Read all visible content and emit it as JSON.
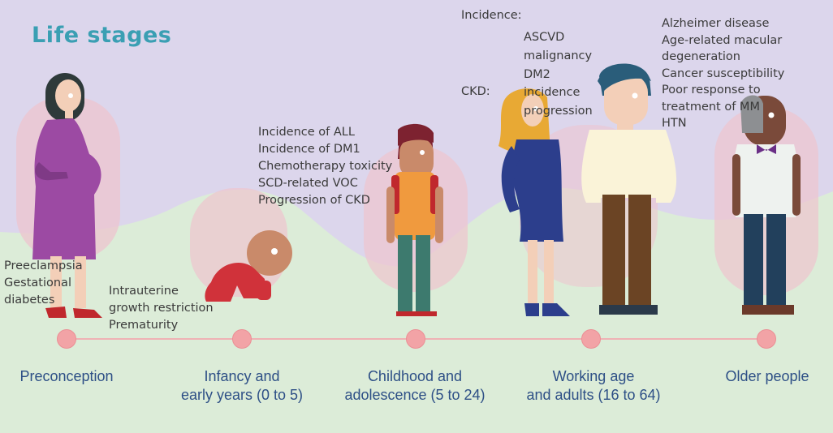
{
  "title": "Life stages",
  "colors": {
    "title": "#3a9fb3",
    "stage_label": "#2d4f86",
    "note_text": "#3a3a3a",
    "timeline_dot": "#f2a3a6",
    "background_top": "#dcd6ec",
    "background_bottom": "#dcecd8"
  },
  "stages": [
    {
      "label_lines": [
        "Preconception"
      ],
      "figure": "pregnant-woman",
      "notes": [
        "Preeclampsia",
        "Gestational",
        "diabetes"
      ]
    },
    {
      "label_lines": [
        "Infancy and",
        "early years (0 to 5)"
      ],
      "figure": "crawling-infant",
      "notes": [
        "Intrauterine",
        "growth restriction",
        "Prematurity"
      ]
    },
    {
      "label_lines": [
        "Childhood and",
        "adolescence (5 to 24)"
      ],
      "figure": "adolescent",
      "notes": [
        "Incidence of ALL",
        "Incidence of DM1",
        "Chemotherapy toxicity",
        "SCD-related VOC",
        "Progression of CKD"
      ]
    },
    {
      "label_lines": [
        "Working age",
        "and adults (16 to 64)"
      ],
      "figure": "adult-couple",
      "notes_incidence_label": "Incidence:",
      "notes_incidence": [
        "ASCVD",
        "malignancy",
        "DM2"
      ],
      "notes_ckd_label": "CKD:",
      "notes_ckd": [
        "incidence",
        "progression"
      ]
    },
    {
      "label_lines": [
        "Older people"
      ],
      "figure": "older-man",
      "notes": [
        "Alzheimer disease",
        "Age-related macular",
        "degeneration",
        "Cancer susceptibility",
        "Poor response to",
        "treatment of MM",
        "HTN"
      ]
    }
  ]
}
